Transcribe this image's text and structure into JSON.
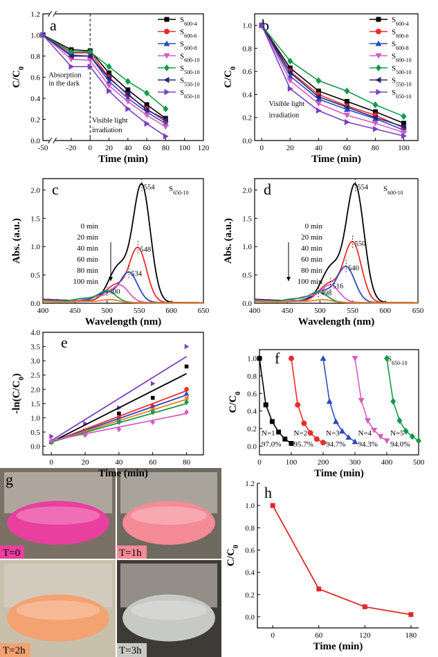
{
  "colors": {
    "S600-4": "#000000",
    "S600-6": "#ee2b2b",
    "S600-8": "#2b4bbf",
    "S600-10": "#d65bc4",
    "S500-10": "#129a4a",
    "S550-10": "#28237a",
    "S650-10": "#7d3fc2",
    "orange": "#f07a1e",
    "h_line": "#e02a2a"
  },
  "chart_data": [
    {
      "id": "a",
      "panel_label": "a",
      "type": "line",
      "xlabel": "Time (min)",
      "ylabel": "C/C0",
      "xlim": [
        -50,
        120
      ],
      "ylim": [
        0,
        1.2
      ],
      "xticks": [
        -50,
        -20,
        0,
        20,
        40,
        60,
        80,
        100,
        120
      ],
      "yticks": [
        0.0,
        0.2,
        0.4,
        0.6,
        0.8,
        1.0,
        1.2
      ],
      "x_break": [
        -45,
        -35
      ],
      "annotations": [
        {
          "text": "Absorption",
          "x": -44,
          "y": 0.6
        },
        {
          "text": "in the dark",
          "x": -44,
          "y": 0.52
        },
        {
          "text": "Visible light",
          "x": 2,
          "y": 0.17
        },
        {
          "text": "irradiation",
          "x": 2,
          "y": 0.08
        }
      ],
      "x": [
        -50,
        -20,
        0,
        20,
        40,
        60,
        80
      ],
      "series": [
        {
          "name": "S600-4",
          "sub": "600-4",
          "marker": "square",
          "values": [
            1.0,
            0.86,
            0.85,
            0.64,
            0.48,
            0.34,
            0.21
          ]
        },
        {
          "name": "S600-6",
          "sub": "600-6",
          "marker": "circle",
          "values": [
            1.0,
            0.83,
            0.83,
            0.6,
            0.43,
            0.3,
            0.18
          ]
        },
        {
          "name": "S600-8",
          "sub": "600-8",
          "marker": "triangle-up",
          "values": [
            1.0,
            0.81,
            0.8,
            0.56,
            0.4,
            0.27,
            0.16
          ]
        },
        {
          "name": "S600-10",
          "sub": "600-10",
          "marker": "triangle-down",
          "values": [
            1.0,
            0.77,
            0.76,
            0.52,
            0.37,
            0.24,
            0.13
          ]
        },
        {
          "name": "S500-10",
          "sub": "500-10",
          "marker": "diamond",
          "values": [
            1.0,
            0.84,
            0.84,
            0.7,
            0.56,
            0.45,
            0.3
          ]
        },
        {
          "name": "S550-10",
          "sub": "550-10",
          "marker": "triangle-left",
          "values": [
            1.0,
            0.8,
            0.8,
            0.59,
            0.44,
            0.29,
            0.2
          ]
        },
        {
          "name": "S650-10",
          "sub": "650-10",
          "marker": "triangle-right",
          "values": [
            1.0,
            0.7,
            0.7,
            0.47,
            0.3,
            0.16,
            0.04
          ]
        }
      ]
    },
    {
      "id": "b",
      "panel_label": "b",
      "type": "line",
      "xlabel": "Time (min)",
      "ylabel": "C/C0",
      "xlim": [
        -5,
        110
      ],
      "ylim": [
        0,
        1.1
      ],
      "xticks": [
        0,
        20,
        40,
        60,
        80,
        100
      ],
      "yticks": [
        0.0,
        0.2,
        0.4,
        0.6,
        0.8,
        1.0
      ],
      "annotations": [
        {
          "text": "Visible light",
          "x": 5,
          "y": 0.3
        },
        {
          "text": "irradiation",
          "x": 5,
          "y": 0.2
        }
      ],
      "x": [
        0,
        20,
        40,
        60,
        80,
        100
      ],
      "series": [
        {
          "name": "S600-4",
          "sub": "600-4",
          "marker": "square",
          "values": [
            1.0,
            0.63,
            0.43,
            0.34,
            0.25,
            0.15
          ]
        },
        {
          "name": "S600-6",
          "sub": "600-6",
          "marker": "circle",
          "values": [
            1.0,
            0.6,
            0.4,
            0.3,
            0.22,
            0.11
          ]
        },
        {
          "name": "S600-8",
          "sub": "600-8",
          "marker": "triangle-up",
          "values": [
            1.0,
            0.56,
            0.36,
            0.27,
            0.19,
            0.09
          ]
        },
        {
          "name": "S600-10",
          "sub": "600-10",
          "marker": "triangle-down",
          "values": [
            1.0,
            0.52,
            0.32,
            0.22,
            0.15,
            0.07
          ]
        },
        {
          "name": "S500-10",
          "sub": "500-10",
          "marker": "diamond",
          "values": [
            1.0,
            0.69,
            0.52,
            0.43,
            0.31,
            0.21
          ]
        },
        {
          "name": "S550-10",
          "sub": "550-10",
          "marker": "triangle-left",
          "values": [
            1.0,
            0.59,
            0.38,
            0.29,
            0.2,
            0.12
          ]
        },
        {
          "name": "S650-10",
          "sub": "650-10",
          "marker": "triangle-right",
          "values": [
            1.0,
            0.45,
            0.26,
            0.16,
            0.1,
            0.04
          ]
        }
      ]
    },
    {
      "id": "c",
      "panel_label": "c",
      "type": "line",
      "sample": {
        "main": "S",
        "sub": "650-10"
      },
      "xlabel": "Wavelength (nm)",
      "ylabel": "Abs. (a.u.)",
      "xlim": [
        400,
        650
      ],
      "ylim": [
        0,
        2.2
      ],
      "xticks": [
        400,
        450,
        500,
        550,
        600,
        650
      ],
      "yticks": [
        0.0,
        0.5,
        1.0,
        1.5,
        2.0
      ],
      "time_labels": [
        "0 min",
        "20 min",
        "40 min",
        "60 min",
        "80 min",
        "100 min"
      ],
      "peaks": [
        {
          "label": "554",
          "x": 554,
          "y": 2.05
        },
        {
          "label": "548",
          "x": 548,
          "y": 0.95
        },
        {
          "label": "534",
          "x": 534,
          "y": 0.52
        },
        {
          "label": "500",
          "x": 500,
          "y": 0.2
        }
      ],
      "curves": [
        {
          "color": "#000000",
          "peak": 554,
          "height": 2.05,
          "base": 0.07
        },
        {
          "color": "#ee2b2b",
          "peak": 548,
          "height": 0.95,
          "base": 0.06
        },
        {
          "color": "#2b4bbf",
          "peak": 534,
          "height": 0.52,
          "base": 0.06
        },
        {
          "color": "#d65bc4",
          "peak": 520,
          "height": 0.3,
          "base": 0.05
        },
        {
          "color": "#129a4a",
          "peak": 500,
          "height": 0.2,
          "base": 0.04
        },
        {
          "color": "#f07a1e",
          "peak": 505,
          "height": 0.05,
          "base": 0.03
        }
      ]
    },
    {
      "id": "d",
      "panel_label": "d",
      "type": "line",
      "sample": {
        "main": "S",
        "sub": "600-10"
      },
      "xlabel": "Wavelength (nm)",
      "ylabel": "Abs. (a.u.)",
      "xlim": [
        400,
        650
      ],
      "ylim": [
        0,
        2.2
      ],
      "xticks": [
        400,
        450,
        500,
        550,
        600,
        650
      ],
      "yticks": [
        0.0,
        0.5,
        1.0,
        1.5,
        2.0
      ],
      "time_labels": [
        "0 min",
        "20 min",
        "40 min",
        "60 min",
        "80 min",
        "100 min"
      ],
      "peaks": [
        {
          "label": "554",
          "x": 554,
          "y": 2.05
        },
        {
          "label": "550",
          "x": 550,
          "y": 1.05
        },
        {
          "label": "540",
          "x": 540,
          "y": 0.62
        },
        {
          "label": "516",
          "x": 516,
          "y": 0.3
        },
        {
          "label": "498",
          "x": 498,
          "y": 0.18
        }
      ],
      "curves": [
        {
          "color": "#000000",
          "peak": 554,
          "height": 2.05,
          "base": 0.07
        },
        {
          "color": "#ee2b2b",
          "peak": 550,
          "height": 1.05,
          "base": 0.06
        },
        {
          "color": "#2b4bbf",
          "peak": 540,
          "height": 0.62,
          "base": 0.06
        },
        {
          "color": "#d65bc4",
          "peak": 516,
          "height": 0.3,
          "base": 0.05
        },
        {
          "color": "#129a4a",
          "peak": 498,
          "height": 0.18,
          "base": 0.04
        },
        {
          "color": "#f07a1e",
          "peak": 505,
          "height": 0.05,
          "base": 0.03
        }
      ]
    },
    {
      "id": "e",
      "panel_label": "e",
      "type": "scatter",
      "xlabel": "Time (min)",
      "ylabel": "-ln(C/C0)",
      "xlim": [
        -5,
        90
      ],
      "ylim": [
        -0.3,
        4.0
      ],
      "xticks": [
        0,
        20,
        40,
        60,
        80
      ],
      "yticks": [
        0.0,
        0.5,
        1.0,
        1.5,
        2.0,
        2.5,
        3.0,
        3.5,
        4.0
      ],
      "x": [
        0,
        20,
        40,
        60,
        80
      ],
      "series": [
        {
          "color": "#7d3fc2",
          "marker": "triangle-right",
          "values": [
            0.35,
            0.8,
            1.35,
            2.2,
            3.5
          ],
          "fit": [
            0.2,
            3.15
          ]
        },
        {
          "color": "#000000",
          "marker": "square",
          "values": [
            0.15,
            0.55,
            1.15,
            1.7,
            2.8
          ],
          "fit": [
            0.15,
            2.55
          ]
        },
        {
          "color": "#ee2b2b",
          "marker": "circle",
          "values": [
            0.15,
            0.5,
            1.0,
            1.4,
            2.0
          ],
          "fit": [
            0.15,
            1.95
          ]
        },
        {
          "color": "#2b4bbf",
          "marker": "triangle-up",
          "values": [
            0.15,
            0.45,
            0.95,
            1.3,
            1.85
          ],
          "fit": [
            0.15,
            1.8
          ]
        },
        {
          "color": "#f07a1e",
          "marker": "triangle-left",
          "values": [
            0.15,
            0.5,
            0.9,
            1.3,
            1.7
          ],
          "fit": [
            0.15,
            1.65
          ]
        },
        {
          "color": "#129a4a",
          "marker": "diamond",
          "values": [
            0.15,
            0.4,
            0.85,
            1.2,
            1.55
          ],
          "fit": [
            0.15,
            1.5
          ]
        },
        {
          "color": "#d65bc4",
          "marker": "diamond",
          "values": [
            0.2,
            0.4,
            0.6,
            0.85,
            1.2
          ],
          "fit": [
            0.2,
            1.15
          ]
        }
      ]
    },
    {
      "id": "f",
      "panel_label": "f",
      "type": "line",
      "sample": {
        "main": "S",
        "sub": "650-10"
      },
      "xlabel": "Time (min)",
      "ylabel": "C/C0",
      "xlim": [
        0,
        500
      ],
      "ylim": [
        -0.1,
        1.1
      ],
      "xticks": [
        0,
        100,
        200,
        300,
        400,
        500
      ],
      "yticks": [
        0.0,
        0.2,
        0.4,
        0.6,
        0.8,
        1.0
      ],
      "cycles": [
        {
          "label": "N=1",
          "percent": "97.0%",
          "color": "#000000",
          "marker": "square",
          "x": [
            0,
            20,
            40,
            60,
            80,
            100
          ],
          "values": [
            1.0,
            0.47,
            0.28,
            0.16,
            0.08,
            0.03
          ]
        },
        {
          "label": "N=2",
          "percent": "95.7%",
          "color": "#ee2b2b",
          "marker": "circle",
          "x": [
            100,
            120,
            140,
            160,
            180,
            200
          ],
          "values": [
            1.0,
            0.47,
            0.26,
            0.15,
            0.08,
            0.04
          ]
        },
        {
          "label": "N=3",
          "percent": "94.7%",
          "color": "#2b4bbf",
          "marker": "triangle-up",
          "x": [
            200,
            220,
            240,
            260,
            280,
            300
          ],
          "values": [
            1.0,
            0.51,
            0.28,
            0.17,
            0.1,
            0.05
          ]
        },
        {
          "label": "N=4",
          "percent": "94.3%",
          "color": "#d65bc4",
          "marker": "triangle-down",
          "x": [
            300,
            320,
            340,
            360,
            380,
            400
          ],
          "values": [
            1.0,
            0.52,
            0.29,
            0.18,
            0.11,
            0.06
          ]
        },
        {
          "label": "N=5",
          "percent": "94.0%",
          "color": "#129a4a",
          "marker": "diamond",
          "x": [
            400,
            420,
            440,
            460,
            480,
            500
          ],
          "values": [
            1.0,
            0.51,
            0.29,
            0.17,
            0.11,
            0.06
          ]
        }
      ]
    },
    {
      "id": "h",
      "panel_label": "h",
      "type": "line",
      "xlabel": "Time (min)",
      "ylabel": "C/C0",
      "xlim": [
        -20,
        190
      ],
      "ylim": [
        -0.1,
        1.2
      ],
      "xticks": [
        0,
        60,
        120,
        180
      ],
      "yticks": [
        0.0,
        0.2,
        0.4,
        0.6,
        0.8,
        1.0,
        1.2
      ],
      "x": [
        0,
        60,
        120,
        180
      ],
      "values": [
        1.0,
        0.25,
        0.09,
        0.02
      ]
    }
  ],
  "photos": {
    "panel_label": "g",
    "items": [
      {
        "label": "T=0",
        "color": "#e93f9e"
      },
      {
        "label": "T=1h",
        "color": "#f48b97"
      },
      {
        "label": "T=2h",
        "color": "#f3a271"
      },
      {
        "label": "T=3h",
        "color": "#c7c9c4"
      }
    ]
  }
}
